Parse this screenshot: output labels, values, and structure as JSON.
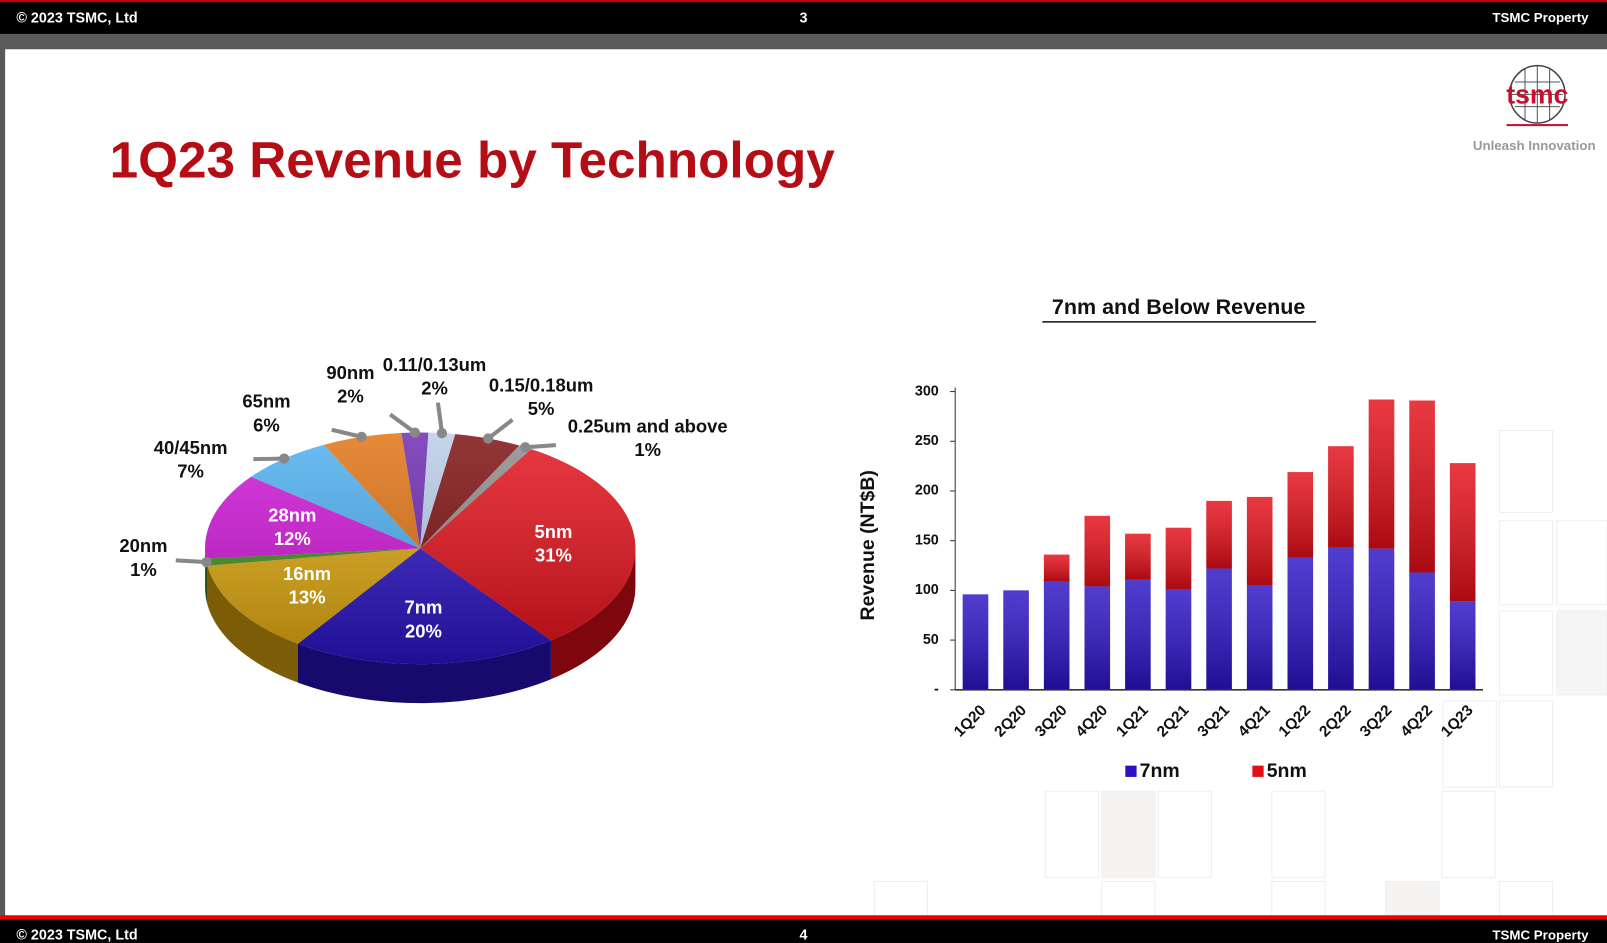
{
  "top_bar": {
    "left": "© 2023 TSMC, Ltd",
    "center": "3",
    "right": "TSMC Property"
  },
  "bottom_bar": {
    "left": "© 2023 TSMC, Ltd",
    "center": "4",
    "right": "TSMC Property"
  },
  "logo": {
    "name": "tsmc",
    "tagline": "Unleash Innovation"
  },
  "slide_title": "1Q23 Revenue by Technology",
  "chart_data": [
    {
      "type": "pie",
      "categories": [
        "5nm",
        "7nm",
        "16nm",
        "20nm",
        "28nm",
        "40/45nm",
        "65nm",
        "90nm",
        "0.11/0.13um",
        "0.15/0.18um",
        "0.25um and above"
      ],
      "values": [
        31,
        20,
        13,
        1,
        12,
        7,
        6,
        2,
        2,
        5,
        1
      ],
      "value_labels": [
        "31%",
        "20%",
        "13%",
        "1%",
        "12%",
        "7%",
        "6%",
        "2%",
        "2%",
        "5%",
        "1%"
      ],
      "colors": [
        "#e30d17",
        "#2a12c4",
        "#e0a80c",
        "#3f8f1f",
        "#d012d8",
        "#4aaef0",
        "#e0700e",
        "#6a25b0",
        "#b8cce8",
        "#7a0a0a",
        "#8a8a8a"
      ]
    },
    {
      "type": "bar",
      "stacked": true,
      "title": "7nm and Below Revenue",
      "y_label": "Revenue (NT$B)",
      "categories": [
        "1Q20",
        "2Q20",
        "3Q20",
        "4Q20",
        "1Q21",
        "2Q21",
        "3Q21",
        "4Q21",
        "1Q22",
        "2Q22",
        "3Q22",
        "4Q22",
        "1Q23"
      ],
      "series": [
        {
          "name": "7nm",
          "color": "#2a12c4",
          "values": [
            96,
            100,
            109,
            104,
            111,
            101,
            122,
            105,
            133,
            143,
            142,
            118,
            89
          ]
        },
        {
          "name": "5nm",
          "color": "#e30d17",
          "values": [
            null,
            null,
            27,
            71,
            46,
            62,
            68,
            89,
            86,
            102,
            150,
            173,
            139
          ]
        }
      ],
      "ylim": [
        0,
        300
      ],
      "yticks": [
        {
          "value": 0,
          "label": "-"
        },
        50,
        100,
        150,
        200,
        250,
        300
      ],
      "grid": false
    }
  ]
}
